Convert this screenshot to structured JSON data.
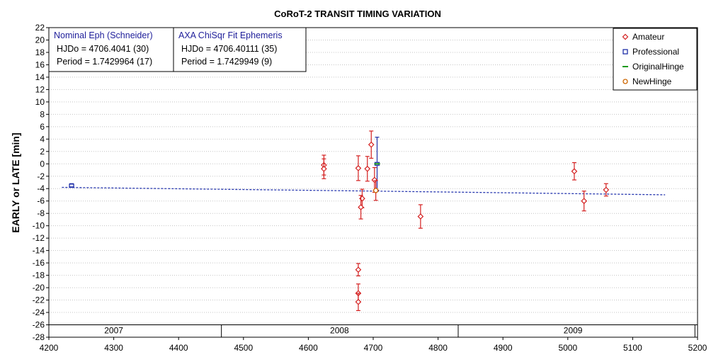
{
  "chart_data": {
    "type": "scatter",
    "title": "CoRoT-2 TRANSIT TIMING VARIATION",
    "xlabel": "",
    "ylabel": "EARLY or LATE [min]",
    "xlim": [
      4200,
      5200
    ],
    "ylim": [
      -28,
      22
    ],
    "x_ticks": [
      4200,
      4300,
      4400,
      4500,
      4600,
      4700,
      4800,
      4900,
      5000,
      5100,
      5200
    ],
    "y_ticks": [
      22,
      20,
      18,
      16,
      14,
      12,
      10,
      8,
      6,
      4,
      2,
      0,
      -2,
      -4,
      -6,
      -8,
      -10,
      -12,
      -14,
      -16,
      -18,
      -20,
      -22,
      -24,
      -26,
      -28
    ],
    "grid": true,
    "legend_position": "top-right",
    "legend": [
      "Amateur",
      "Professional",
      "OriginalHinge",
      "NewHinge"
    ],
    "colors": {
      "amateur": "#d42020",
      "professional": "#1f2fa8",
      "original_hinge": "#1a9a1a",
      "new_hinge": "#cc6600",
      "fit_line": "#2a3ab0",
      "grid": "#c4c4c4",
      "box_title": "#1e1e9a"
    },
    "years": [
      {
        "label": "2007",
        "x": 4300
      },
      {
        "label": "2008",
        "x": 4648
      },
      {
        "label": "2009",
        "x": 5008
      }
    ],
    "year_boundaries": [
      4466,
      4831,
      5196
    ],
    "series": [
      {
        "name": "Amateur",
        "marker": "diamond",
        "points": [
          {
            "x": 4624,
            "y": -0.2,
            "err": 1.6
          },
          {
            "x": 4624,
            "y": -0.8,
            "err": 1.6
          },
          {
            "x": 4677,
            "y": -0.7,
            "err": 2.0
          },
          {
            "x": 4691,
            "y": -0.8,
            "err": 2.0
          },
          {
            "x": 4697,
            "y": 3.1,
            "err": 2.2
          },
          {
            "x": 4702,
            "y": -2.6,
            "err": 2.0
          },
          {
            "x": 4704,
            "y": -4.3,
            "err": 1.6
          },
          {
            "x": 4683,
            "y": -5.6,
            "err": 1.5
          },
          {
            "x": 4681,
            "y": -7.0,
            "err": 1.9
          },
          {
            "x": 4773,
            "y": -8.5,
            "err": 1.9
          },
          {
            "x": 4677,
            "y": -17.1,
            "err": 1.0
          },
          {
            "x": 4677,
            "y": -20.9,
            "err": 1.5
          },
          {
            "x": 4677,
            "y": -22.3,
            "err": 1.4
          },
          {
            "x": 5010,
            "y": -1.2,
            "err": 1.4
          },
          {
            "x": 5025,
            "y": -6.0,
            "err": 1.6
          },
          {
            "x": 5059,
            "y": -4.2,
            "err": 1.0
          }
        ]
      },
      {
        "name": "Professional",
        "marker": "square",
        "points": [
          {
            "x": 4235,
            "y": -3.5,
            "err": 0.3
          },
          {
            "x": 4706,
            "y": 0.0,
            "err": 4.3
          }
        ]
      },
      {
        "name": "OriginalHinge",
        "marker": "line",
        "points": [
          {
            "x": 4706,
            "y": 0.0
          }
        ]
      },
      {
        "name": "NewHinge",
        "marker": "circle",
        "points": [
          {
            "x": 4704,
            "y": -4.3
          }
        ]
      },
      {
        "name": "fit",
        "marker": "dashed-line",
        "points": [
          {
            "x": 4220,
            "y": -3.8
          },
          {
            "x": 4700,
            "y": -4.4
          },
          {
            "x": 5150,
            "y": -5.0
          }
        ]
      }
    ],
    "info_boxes": [
      {
        "title": "Nominal Eph (Schneider)",
        "lines": [
          "HJDo = 4706.4041 (30)",
          "Period = 1.7429964 (17)"
        ]
      },
      {
        "title": "AXA ChiSqr Fit Ephemeris",
        "lines": [
          "HJDo = 4706.40111 (35)",
          "Period = 1.7429949 (9)"
        ]
      }
    ]
  }
}
